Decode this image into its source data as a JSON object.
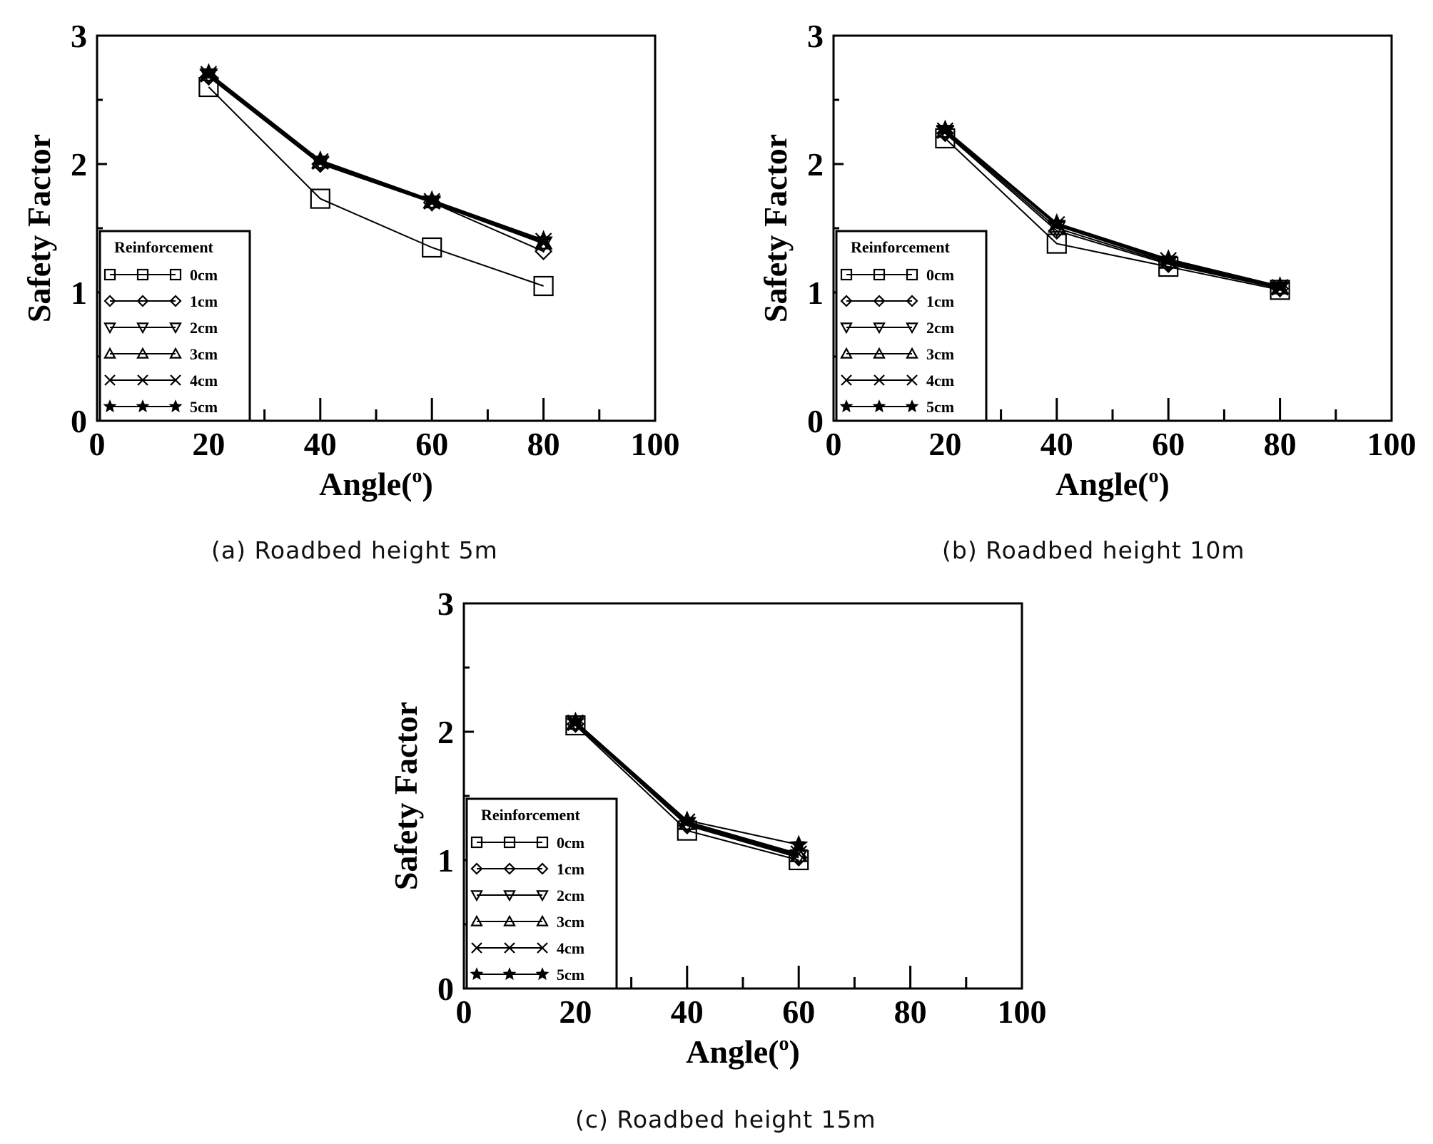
{
  "chart_data": [
    {
      "id": "a",
      "type": "line",
      "caption": "(a) Roadbed height 5m",
      "xlabel": "Angle(o)",
      "ylabel": "Safety Factor",
      "xlim": [
        0,
        100
      ],
      "ylim": [
        0,
        3
      ],
      "xticks": [
        "0",
        "20",
        "40",
        "60",
        "80",
        "100"
      ],
      "yticks": [
        "0",
        "1",
        "2",
        "3"
      ],
      "legend_title": "Reinforcement",
      "legend_position": "bottom-left",
      "x": [
        20,
        40,
        60,
        80
      ],
      "series": [
        {
          "name": "0cm",
          "marker": "square",
          "values": [
            2.6,
            1.73,
            1.35,
            1.05
          ]
        },
        {
          "name": "1cm",
          "marker": "diamond",
          "values": [
            2.68,
            2.0,
            1.7,
            1.32
          ]
        },
        {
          "name": "2cm",
          "marker": "triangle-down",
          "values": [
            2.69,
            2.01,
            1.7,
            1.38
          ]
        },
        {
          "name": "3cm",
          "marker": "triangle-up",
          "values": [
            2.7,
            2.02,
            1.71,
            1.39
          ]
        },
        {
          "name": "4cm",
          "marker": "x",
          "values": [
            2.7,
            2.02,
            1.71,
            1.4
          ]
        },
        {
          "name": "5cm",
          "marker": "star",
          "values": [
            2.71,
            2.03,
            1.72,
            1.41
          ]
        }
      ]
    },
    {
      "id": "b",
      "type": "line",
      "caption": "(b) Roadbed height 10m",
      "xlabel": "Angle(o)",
      "ylabel": "Safety Factor",
      "xlim": [
        0,
        100
      ],
      "ylim": [
        0,
        3
      ],
      "xticks": [
        "0",
        "20",
        "40",
        "60",
        "80",
        "100"
      ],
      "yticks": [
        "0",
        "1",
        "2",
        "3"
      ],
      "legend_title": "Reinforcement",
      "legend_position": "bottom-left",
      "x": [
        20,
        40,
        60,
        80
      ],
      "series": [
        {
          "name": "0cm",
          "marker": "square",
          "values": [
            2.2,
            1.38,
            1.2,
            1.02
          ]
        },
        {
          "name": "1cm",
          "marker": "diamond",
          "values": [
            2.24,
            1.48,
            1.22,
            1.03
          ]
        },
        {
          "name": "2cm",
          "marker": "triangle-down",
          "values": [
            2.25,
            1.5,
            1.23,
            1.03
          ]
        },
        {
          "name": "3cm",
          "marker": "triangle-up",
          "values": [
            2.26,
            1.52,
            1.24,
            1.04
          ]
        },
        {
          "name": "4cm",
          "marker": "x",
          "values": [
            2.26,
            1.53,
            1.25,
            1.04
          ]
        },
        {
          "name": "5cm",
          "marker": "star",
          "values": [
            2.27,
            1.54,
            1.26,
            1.05
          ]
        }
      ]
    },
    {
      "id": "c",
      "type": "line",
      "caption": "(c) Roadbed height 15m",
      "xlabel": "Angle(o)",
      "ylabel": "Safety Factor",
      "xlim": [
        0,
        100
      ],
      "ylim": [
        0,
        3
      ],
      "xticks": [
        "0",
        "20",
        "40",
        "60",
        "80",
        "100"
      ],
      "yticks": [
        "0",
        "1",
        "2",
        "3"
      ],
      "legend_title": "Reinforcement",
      "legend_position": "bottom-left",
      "x": [
        20,
        40,
        60
      ],
      "series": [
        {
          "name": "0cm",
          "marker": "square",
          "values": [
            2.05,
            1.23,
            1.0
          ]
        },
        {
          "name": "1cm",
          "marker": "diamond",
          "values": [
            2.06,
            1.27,
            1.02
          ]
        },
        {
          "name": "2cm",
          "marker": "triangle-down",
          "values": [
            2.07,
            1.28,
            1.03
          ]
        },
        {
          "name": "3cm",
          "marker": "triangle-up",
          "values": [
            2.07,
            1.29,
            1.04
          ]
        },
        {
          "name": "4cm",
          "marker": "x",
          "values": [
            2.07,
            1.3,
            1.05
          ]
        },
        {
          "name": "5cm",
          "marker": "star",
          "values": [
            2.08,
            1.31,
            1.12
          ]
        }
      ]
    }
  ]
}
